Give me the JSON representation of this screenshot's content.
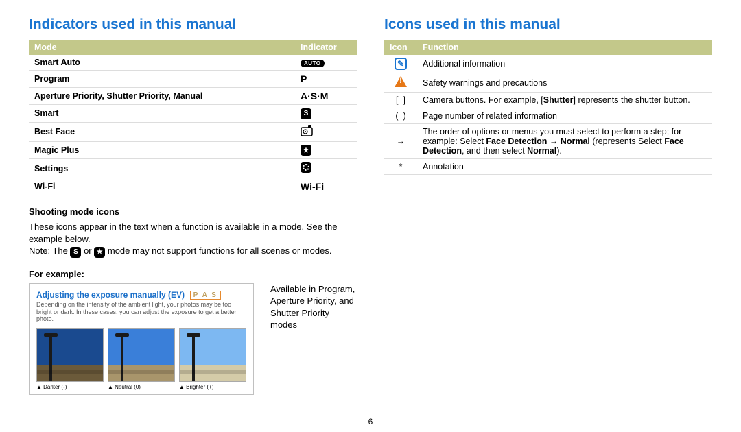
{
  "left": {
    "title": "Indicators used in this manual",
    "table": {
      "headers": {
        "mode": "Mode",
        "indicator": "Indicator"
      },
      "rows": [
        {
          "mode": "Smart Auto",
          "indicator_type": "auto",
          "indicator_text": "AUTO"
        },
        {
          "mode": "Program",
          "indicator_type": "text",
          "indicator_text": "P"
        },
        {
          "mode": "Aperture Priority, Shutter Priority, Manual",
          "indicator_type": "text",
          "indicator_text": "A·S·M"
        },
        {
          "mode": "Smart",
          "indicator_type": "black-s",
          "indicator_text": "S"
        },
        {
          "mode": "Best Face",
          "indicator_type": "bestface",
          "indicator_text": ""
        },
        {
          "mode": "Magic Plus",
          "indicator_type": "black-star",
          "indicator_text": "★"
        },
        {
          "mode": "Settings",
          "indicator_type": "gear",
          "indicator_text": ""
        },
        {
          "mode": "Wi-Fi",
          "indicator_type": "text",
          "indicator_text": "Wi-Fi"
        }
      ]
    },
    "shooting_head": "Shooting mode icons",
    "shooting_body1": "These icons appear in the text when a function is available in a mode. See the example below.",
    "shooting_body2a": "Note: The ",
    "shooting_body2b": " or ",
    "shooting_body2c": " mode may not support functions for all scenes or modes.",
    "for_example": "For example:",
    "example": {
      "title": "Adjusting the exposure manually (EV)",
      "pas": "P A S",
      "sub": "Depending on the intensity of the ambient light, your photos may be too bright or dark. In these cases, you can adjust the exposure to get a better photo.",
      "thumbs": [
        {
          "label": "Darker (-)",
          "sky": "#1a4a8f",
          "ground": "#6b5a3a"
        },
        {
          "label": "Neutral (0)",
          "sky": "#3a7fd9",
          "ground": "#a8956b"
        },
        {
          "label": "Brighter (+)",
          "sky": "#7db8f2",
          "ground": "#d4cba8"
        }
      ]
    },
    "available_text": "Available in Program, Aperture Priority, and Shutter Priority modes"
  },
  "right": {
    "title": "Icons used in this manual",
    "table": {
      "headers": {
        "icon": "Icon",
        "function": "Function"
      },
      "rows": [
        {
          "icon_type": "info",
          "function_html": "Additional information"
        },
        {
          "icon_type": "warn",
          "function_html": "Safety warnings and precautions"
        },
        {
          "icon_type": "brackets",
          "function_html": "Camera buttons. For example, [<b>Shutter</b>] represents the shutter button."
        },
        {
          "icon_type": "parens",
          "function_html": "Page number of related information"
        },
        {
          "icon_type": "arrow",
          "function_html": "The order of options or menus you must select to perform a step; for example: Select <b>Face Detection</b> → <b>Normal</b> (represents Select <b>Face Detection</b>, and then select <b>Normal</b>)."
        },
        {
          "icon_type": "asterisk",
          "function_html": "Annotation"
        }
      ]
    }
  },
  "page_number": "6"
}
